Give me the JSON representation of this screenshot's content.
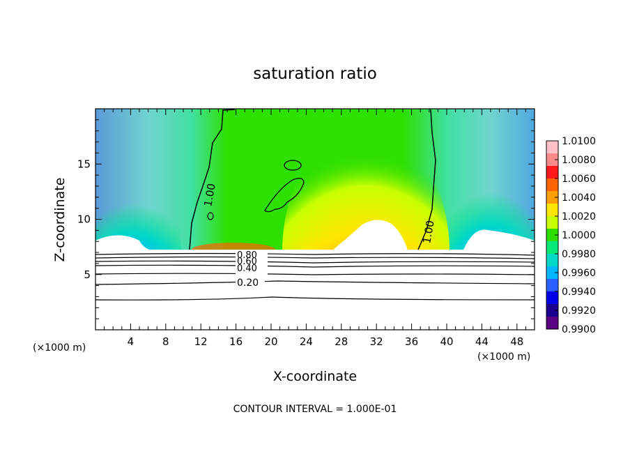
{
  "chart_data": {
    "type": "heatmap",
    "title": "saturation ratio",
    "xlabel": "X-coordinate",
    "ylabel": "Z-coordinate",
    "x_unit_left": "(×1000 m)",
    "x_unit_right": "(×1000 m)",
    "footnote": "CONTOUR INTERVAL = 1.000E-01",
    "xlim": [
      0,
      50
    ],
    "ylim": [
      0,
      20
    ],
    "x_ticks": [
      4,
      8,
      12,
      16,
      20,
      24,
      28,
      32,
      36,
      40,
      44,
      48
    ],
    "y_ticks": [
      5,
      10,
      15
    ],
    "colorbar": {
      "ticks": [
        "1.0100",
        "1.0080",
        "1.0060",
        "1.0040",
        "1.0020",
        "1.0000",
        "0.9980",
        "0.9960",
        "0.9940",
        "0.9920",
        "0.9900"
      ],
      "colors": [
        "#ffc0c8",
        "#ff8a8a",
        "#ff1818",
        "#ff6400",
        "#ff9f00",
        "#ffe600",
        "#c8ff00",
        "#2ee000",
        "#00e878",
        "#00d8c8",
        "#00b8ff",
        "#2a60ff",
        "#0000e8",
        "#1a0090",
        "#5a0080"
      ]
    },
    "contour_labels": [
      "1.00",
      "1.00",
      "0.80",
      "0.60",
      "0.40",
      "0.20"
    ],
    "contour_levels_below_cloud": [
      0.2,
      0.4,
      0.6,
      0.8
    ],
    "contour_level_in_cloud": 1.0
  }
}
